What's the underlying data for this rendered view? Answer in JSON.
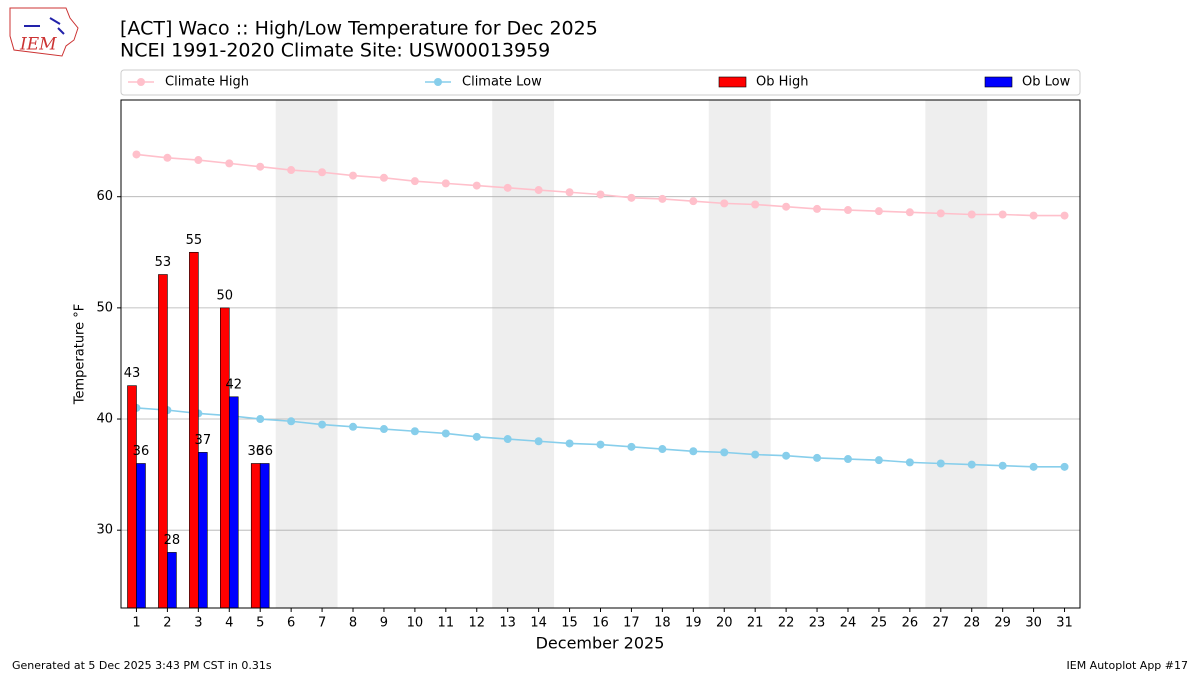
{
  "chart_data": {
    "type": "bar",
    "title": "[ACT] Waco :: High/Low Temperature for Dec 2025",
    "subtitle": "NCEI 1991-2020 Climate Site: USW00013959",
    "xlabel": "December 2025",
    "ylabel": "Temperature °F",
    "x": [
      1,
      2,
      3,
      4,
      5,
      6,
      7,
      8,
      9,
      10,
      11,
      12,
      13,
      14,
      15,
      16,
      17,
      18,
      19,
      20,
      21,
      22,
      23,
      24,
      25,
      26,
      27,
      28,
      29,
      30,
      31
    ],
    "xlim": [
      0.5,
      31.5
    ],
    "xticks": [
      1,
      2,
      3,
      4,
      5,
      6,
      7,
      8,
      9,
      10,
      11,
      12,
      13,
      14,
      15,
      16,
      17,
      18,
      19,
      20,
      21,
      22,
      23,
      24,
      25,
      26,
      27,
      28,
      29,
      30,
      31
    ],
    "ylim": [
      23,
      68.7
    ],
    "yticks": [
      30,
      40,
      50,
      60
    ],
    "grid": true,
    "shaded_ranges": [
      [
        5.5,
        7.5
      ],
      [
        12.5,
        14.5
      ],
      [
        19.5,
        21.5
      ],
      [
        26.5,
        28.5
      ]
    ],
    "series": [
      {
        "name": "Climate High",
        "kind": "line",
        "color": "#ffc0cb",
        "values": [
          63.8,
          63.5,
          63.3,
          63.0,
          62.7,
          62.4,
          62.2,
          61.9,
          61.7,
          61.4,
          61.2,
          61.0,
          60.8,
          60.6,
          60.4,
          60.2,
          59.9,
          59.8,
          59.6,
          59.4,
          59.3,
          59.1,
          58.9,
          58.8,
          58.7,
          58.6,
          58.5,
          58.4,
          58.4,
          58.3,
          58.3
        ]
      },
      {
        "name": "Climate Low",
        "kind": "line",
        "color": "#87ceeb",
        "values": [
          41.0,
          40.8,
          40.5,
          40.3,
          40.0,
          39.8,
          39.5,
          39.3,
          39.1,
          38.9,
          38.7,
          38.4,
          38.2,
          38.0,
          37.8,
          37.7,
          37.5,
          37.3,
          37.1,
          37.0,
          36.8,
          36.7,
          36.5,
          36.4,
          36.3,
          36.1,
          36.0,
          35.9,
          35.8,
          35.7,
          35.7
        ]
      },
      {
        "name": "Ob High",
        "kind": "bar",
        "color": "#ff0000",
        "values": [
          43,
          53,
          55,
          50,
          36,
          null,
          null,
          null,
          null,
          null,
          null,
          null,
          null,
          null,
          null,
          null,
          null,
          null,
          null,
          null,
          null,
          null,
          null,
          null,
          null,
          null,
          null,
          null,
          null,
          null,
          null
        ]
      },
      {
        "name": "Ob Low",
        "kind": "bar",
        "color": "#0000ff",
        "values": [
          36,
          28,
          37,
          42,
          36,
          null,
          null,
          null,
          null,
          null,
          null,
          null,
          null,
          null,
          null,
          null,
          null,
          null,
          null,
          null,
          null,
          null,
          null,
          null,
          null,
          null,
          null,
          null,
          null,
          null,
          null
        ]
      }
    ],
    "footer_left": "Generated at 5 Dec 2025 3:43 PM CST in 0.31s",
    "footer_right": "IEM Autoplot App #17",
    "logo_text": "IEM"
  }
}
